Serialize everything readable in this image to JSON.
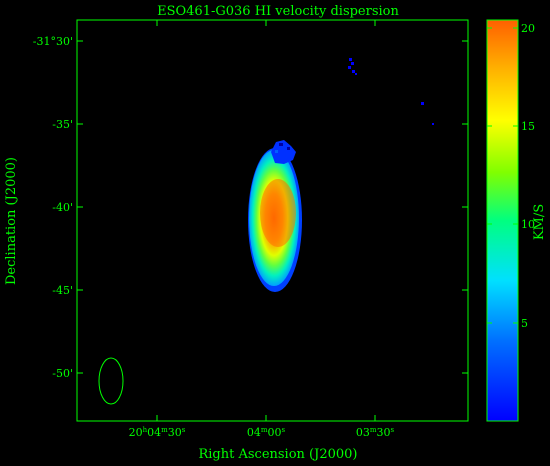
{
  "figure": {
    "title": "ESO461-G036  HI velocity dispersion",
    "xlabel": "Right Ascension (J2000)",
    "ylabel": "Declination (J2000)",
    "x_ticks": [
      {
        "h": "20",
        "m": "04",
        "s": "30",
        "label": "20h04m30s"
      },
      {
        "h": "",
        "m": "04",
        "s": "00",
        "label": "04m00s"
      },
      {
        "h": "",
        "m": "03",
        "s": "30",
        "label": "03m30s"
      }
    ],
    "y_ticks": [
      "-31°30'",
      "-35'",
      "-40'",
      "-45'",
      "-50'"
    ],
    "colorbar": {
      "label": "KM/S",
      "ticks": [
        "20",
        "15",
        "10",
        "5"
      ],
      "range": [
        0,
        20
      ],
      "colormap": "jet",
      "colors": [
        "#0000ff",
        "#0080ff",
        "#00e0ff",
        "#00ff80",
        "#80ff00",
        "#ffff00",
        "#ffa000",
        "#ff6000"
      ]
    },
    "axis_color": "#00ff00",
    "background_color": "#000000",
    "beam_shape": "ellipse",
    "galaxy_peak_color": "#ff6000"
  }
}
